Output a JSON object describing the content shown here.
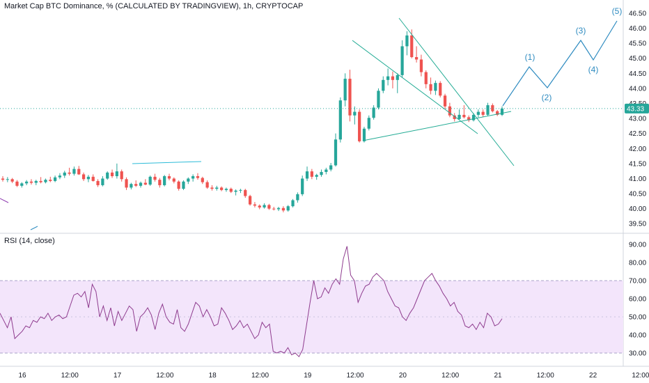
{
  "header": {
    "title": "Market Cap BTC Dominance, % (CALCULATED BY TRADINGVIEW), 1h, CRYPTOCAP"
  },
  "colors": {
    "up": "#26a69a",
    "down": "#ef5350",
    "drawing": "#22ab94",
    "wave": "#2e8bc0",
    "rsi_line": "#8e3b8e",
    "rsi_band": "#f3e5fb",
    "price_tag": "#26a69a"
  },
  "chart_data": [
    {
      "type": "candlestick",
      "title": "Market Cap BTC Dominance, % (CALCULATED BY TRADINGVIEW), 1h, CRYPTOCAP",
      "ylim": [
        39.25,
        46.8
      ],
      "y_ticks": [
        "39.50",
        "40.00",
        "40.50",
        "41.00",
        "41.50",
        "42.00",
        "42.50",
        "43.00",
        "43.50",
        "44.00",
        "44.50",
        "45.00",
        "45.50",
        "46.00",
        "46.50"
      ],
      "last_price": "43.33",
      "x_ticks": [
        "16",
        "12:00",
        "17",
        "12:00",
        "18",
        "12:00",
        "19",
        "12:00",
        "20",
        "12:00",
        "21",
        "12:00",
        "22",
        "12:00"
      ],
      "candles": [
        {
          "o": 41.0,
          "h": 41.08,
          "l": 40.9,
          "c": 40.96
        },
        {
          "o": 40.96,
          "h": 41.05,
          "l": 40.88,
          "c": 40.98
        },
        {
          "o": 40.98,
          "h": 41.02,
          "l": 40.85,
          "c": 40.9
        },
        {
          "o": 40.9,
          "h": 40.95,
          "l": 40.72,
          "c": 40.76
        },
        {
          "o": 40.76,
          "h": 40.88,
          "l": 40.7,
          "c": 40.84
        },
        {
          "o": 40.84,
          "h": 40.95,
          "l": 40.78,
          "c": 40.9
        },
        {
          "o": 40.9,
          "h": 40.98,
          "l": 40.8,
          "c": 40.86
        },
        {
          "o": 40.86,
          "h": 40.96,
          "l": 40.78,
          "c": 40.92
        },
        {
          "o": 40.92,
          "h": 41.05,
          "l": 40.84,
          "c": 40.88
        },
        {
          "o": 40.88,
          "h": 41.0,
          "l": 40.84,
          "c": 40.96
        },
        {
          "o": 40.96,
          "h": 41.06,
          "l": 40.88,
          "c": 40.92
        },
        {
          "o": 40.92,
          "h": 41.1,
          "l": 40.88,
          "c": 41.04
        },
        {
          "o": 41.04,
          "h": 41.18,
          "l": 40.98,
          "c": 41.1
        },
        {
          "o": 41.1,
          "h": 41.26,
          "l": 41.02,
          "c": 41.2
        },
        {
          "o": 41.2,
          "h": 41.36,
          "l": 41.1,
          "c": 41.16
        },
        {
          "o": 41.16,
          "h": 41.4,
          "l": 41.1,
          "c": 41.32
        },
        {
          "o": 41.32,
          "h": 41.42,
          "l": 41.12,
          "c": 41.14
        },
        {
          "o": 41.14,
          "h": 41.2,
          "l": 40.92,
          "c": 40.98
        },
        {
          "o": 40.98,
          "h": 41.12,
          "l": 40.88,
          "c": 41.06
        },
        {
          "o": 41.06,
          "h": 41.14,
          "l": 40.9,
          "c": 40.92
        },
        {
          "o": 40.92,
          "h": 40.98,
          "l": 40.72,
          "c": 40.78
        },
        {
          "o": 40.78,
          "h": 41.08,
          "l": 40.74,
          "c": 41.0
        },
        {
          "o": 41.0,
          "h": 41.24,
          "l": 40.96,
          "c": 41.2
        },
        {
          "o": 41.2,
          "h": 41.3,
          "l": 41.02,
          "c": 41.08
        },
        {
          "o": 41.08,
          "h": 41.5,
          "l": 41.0,
          "c": 41.24
        },
        {
          "o": 41.24,
          "h": 41.3,
          "l": 40.9,
          "c": 40.98
        },
        {
          "o": 40.98,
          "h": 41.04,
          "l": 40.62,
          "c": 40.7
        },
        {
          "o": 40.7,
          "h": 40.86,
          "l": 40.64,
          "c": 40.82
        },
        {
          "o": 40.82,
          "h": 40.94,
          "l": 40.72,
          "c": 40.76
        },
        {
          "o": 40.76,
          "h": 40.9,
          "l": 40.7,
          "c": 40.86
        },
        {
          "o": 40.86,
          "h": 40.98,
          "l": 40.78,
          "c": 40.8
        },
        {
          "o": 40.8,
          "h": 41.1,
          "l": 40.76,
          "c": 41.06
        },
        {
          "o": 41.06,
          "h": 41.16,
          "l": 40.9,
          "c": 40.96
        },
        {
          "o": 40.96,
          "h": 41.02,
          "l": 40.7,
          "c": 40.78
        },
        {
          "o": 40.78,
          "h": 41.12,
          "l": 40.74,
          "c": 41.08
        },
        {
          "o": 41.08,
          "h": 41.16,
          "l": 40.94,
          "c": 41.0
        },
        {
          "o": 41.0,
          "h": 41.04,
          "l": 40.84,
          "c": 40.9
        },
        {
          "o": 40.9,
          "h": 40.94,
          "l": 40.6,
          "c": 40.66
        },
        {
          "o": 40.66,
          "h": 40.94,
          "l": 40.62,
          "c": 40.9
        },
        {
          "o": 40.9,
          "h": 41.04,
          "l": 40.82,
          "c": 41.0
        },
        {
          "o": 41.0,
          "h": 41.14,
          "l": 40.9,
          "c": 41.08
        },
        {
          "o": 41.08,
          "h": 41.18,
          "l": 40.96,
          "c": 41.02
        },
        {
          "o": 41.02,
          "h": 41.06,
          "l": 40.82,
          "c": 40.88
        },
        {
          "o": 40.88,
          "h": 40.94,
          "l": 40.66,
          "c": 40.7
        },
        {
          "o": 40.7,
          "h": 40.78,
          "l": 40.6,
          "c": 40.66
        },
        {
          "o": 40.66,
          "h": 40.76,
          "l": 40.6,
          "c": 40.7
        },
        {
          "o": 40.7,
          "h": 40.74,
          "l": 40.58,
          "c": 40.62
        },
        {
          "o": 40.62,
          "h": 40.7,
          "l": 40.56,
          "c": 40.66
        },
        {
          "o": 40.66,
          "h": 40.7,
          "l": 40.52,
          "c": 40.56
        },
        {
          "o": 40.56,
          "h": 40.64,
          "l": 40.44,
          "c": 40.6
        },
        {
          "o": 40.6,
          "h": 40.66,
          "l": 40.52,
          "c": 40.62
        },
        {
          "o": 40.62,
          "h": 40.66,
          "l": 40.36,
          "c": 40.42
        },
        {
          "o": 40.42,
          "h": 40.46,
          "l": 40.1,
          "c": 40.14
        },
        {
          "o": 40.14,
          "h": 40.22,
          "l": 40.04,
          "c": 40.1
        },
        {
          "o": 40.1,
          "h": 40.14,
          "l": 39.98,
          "c": 40.04
        },
        {
          "o": 40.04,
          "h": 40.18,
          "l": 40.0,
          "c": 40.12
        },
        {
          "o": 40.12,
          "h": 40.16,
          "l": 39.96,
          "c": 40.0
        },
        {
          "o": 40.0,
          "h": 40.06,
          "l": 39.94,
          "c": 39.98
        },
        {
          "o": 39.98,
          "h": 40.06,
          "l": 39.92,
          "c": 40.02
        },
        {
          "o": 40.02,
          "h": 40.08,
          "l": 39.88,
          "c": 39.94
        },
        {
          "o": 39.94,
          "h": 40.12,
          "l": 39.9,
          "c": 40.08
        },
        {
          "o": 40.08,
          "h": 40.32,
          "l": 40.04,
          "c": 40.28
        },
        {
          "o": 40.28,
          "h": 40.54,
          "l": 40.2,
          "c": 40.48
        },
        {
          "o": 40.48,
          "h": 41.1,
          "l": 40.42,
          "c": 41.0
        },
        {
          "o": 41.0,
          "h": 41.4,
          "l": 40.92,
          "c": 41.24
        },
        {
          "o": 41.24,
          "h": 41.32,
          "l": 40.98,
          "c": 41.06
        },
        {
          "o": 41.06,
          "h": 41.16,
          "l": 40.96,
          "c": 41.12
        },
        {
          "o": 41.12,
          "h": 41.3,
          "l": 41.06,
          "c": 41.22
        },
        {
          "o": 41.22,
          "h": 41.36,
          "l": 41.14,
          "c": 41.3
        },
        {
          "o": 41.3,
          "h": 41.52,
          "l": 41.24,
          "c": 41.44
        },
        {
          "o": 41.44,
          "h": 42.5,
          "l": 41.4,
          "c": 42.3
        },
        {
          "o": 42.3,
          "h": 43.7,
          "l": 42.2,
          "c": 43.6
        },
        {
          "o": 43.6,
          "h": 44.5,
          "l": 43.4,
          "c": 44.32
        },
        {
          "o": 44.32,
          "h": 44.62,
          "l": 42.9,
          "c": 43.1
        },
        {
          "o": 43.1,
          "h": 43.4,
          "l": 42.8,
          "c": 43.22
        },
        {
          "o": 43.22,
          "h": 43.3,
          "l": 42.2,
          "c": 42.24
        },
        {
          "o": 42.24,
          "h": 42.72,
          "l": 42.2,
          "c": 42.66
        },
        {
          "o": 42.66,
          "h": 43.1,
          "l": 42.6,
          "c": 43.02
        },
        {
          "o": 43.02,
          "h": 43.44,
          "l": 42.96,
          "c": 43.36
        },
        {
          "o": 43.36,
          "h": 44.0,
          "l": 43.3,
          "c": 43.92
        },
        {
          "o": 43.92,
          "h": 44.4,
          "l": 43.84,
          "c": 44.28
        },
        {
          "o": 44.28,
          "h": 44.66,
          "l": 44.1,
          "c": 44.4
        },
        {
          "o": 44.4,
          "h": 44.56,
          "l": 44.0,
          "c": 44.28
        },
        {
          "o": 44.28,
          "h": 44.5,
          "l": 43.84,
          "c": 44.44
        },
        {
          "o": 44.44,
          "h": 45.6,
          "l": 44.36,
          "c": 45.4
        },
        {
          "o": 45.4,
          "h": 45.9,
          "l": 45.1,
          "c": 45.76
        },
        {
          "o": 45.76,
          "h": 45.96,
          "l": 45.0,
          "c": 45.04
        },
        {
          "o": 45.04,
          "h": 45.4,
          "l": 44.86,
          "c": 44.96
        },
        {
          "o": 44.96,
          "h": 45.12,
          "l": 44.4,
          "c": 44.54
        },
        {
          "o": 44.54,
          "h": 44.6,
          "l": 44.0,
          "c": 44.14
        },
        {
          "o": 44.14,
          "h": 44.36,
          "l": 43.8,
          "c": 43.92
        },
        {
          "o": 43.92,
          "h": 44.26,
          "l": 43.78,
          "c": 44.18
        },
        {
          "o": 44.18,
          "h": 44.24,
          "l": 43.7,
          "c": 43.76
        },
        {
          "o": 43.76,
          "h": 43.82,
          "l": 43.3,
          "c": 43.4
        },
        {
          "o": 43.4,
          "h": 43.52,
          "l": 43.04,
          "c": 43.1
        },
        {
          "o": 43.1,
          "h": 43.18,
          "l": 42.9,
          "c": 42.98
        },
        {
          "o": 42.98,
          "h": 43.3,
          "l": 42.96,
          "c": 43.12
        },
        {
          "o": 43.12,
          "h": 43.44,
          "l": 43.0,
          "c": 43.04
        },
        {
          "o": 43.04,
          "h": 43.1,
          "l": 42.88,
          "c": 42.94
        },
        {
          "o": 42.94,
          "h": 43.18,
          "l": 42.9,
          "c": 43.12
        },
        {
          "o": 43.12,
          "h": 43.3,
          "l": 43.04,
          "c": 43.22
        },
        {
          "o": 43.22,
          "h": 43.3,
          "l": 43.06,
          "c": 43.12
        },
        {
          "o": 43.12,
          "h": 43.52,
          "l": 43.08,
          "c": 43.44
        },
        {
          "o": 43.44,
          "h": 43.5,
          "l": 43.2,
          "c": 43.24
        },
        {
          "o": 43.24,
          "h": 43.28,
          "l": 43.08,
          "c": 43.12
        },
        {
          "o": 43.12,
          "h": 43.4,
          "l": 43.08,
          "c": 43.33
        }
      ],
      "wave_labels": [
        "(1)",
        "(2)",
        "(3)",
        "(4)",
        "(5)"
      ]
    },
    {
      "type": "line",
      "title": "RSI (14, close)",
      "ylim": [
        25,
        95
      ],
      "y_ticks": [
        "30.00",
        "40.00",
        "50.00",
        "60.00",
        "70.00",
        "80.00",
        "90.00"
      ],
      "band": [
        30,
        70
      ],
      "series": [
        {
          "values": [
            52,
            48,
            44,
            50,
            38,
            40,
            42,
            45,
            44,
            48,
            47,
            50,
            49,
            52,
            48,
            50,
            51,
            49,
            50,
            56,
            62,
            63,
            61,
            64,
            55,
            68,
            64,
            50,
            56,
            48,
            55,
            45,
            53,
            48,
            52,
            56,
            54,
            42,
            50,
            52,
            55,
            51,
            43,
            52,
            57,
            50,
            47,
            46,
            54,
            44,
            42,
            46,
            52,
            58,
            56,
            50,
            54,
            50,
            45,
            46,
            55,
            52,
            48,
            43,
            45,
            48,
            44,
            46,
            42,
            38,
            40,
            47,
            44,
            46,
            31,
            30,
            31,
            30,
            33,
            29,
            30,
            28,
            32,
            45,
            58,
            70,
            60,
            61,
            66,
            63,
            68,
            71,
            68,
            82,
            89,
            73,
            70,
            58,
            63,
            67,
            68,
            72,
            74,
            72,
            70,
            64,
            60,
            56,
            55,
            50,
            48,
            52,
            55,
            60,
            65,
            70,
            72,
            74,
            70,
            67,
            63,
            60,
            56,
            58,
            53,
            51,
            45,
            44,
            46,
            43,
            47,
            44,
            52,
            50,
            45,
            46,
            49
          ]
        }
      ]
    }
  ]
}
